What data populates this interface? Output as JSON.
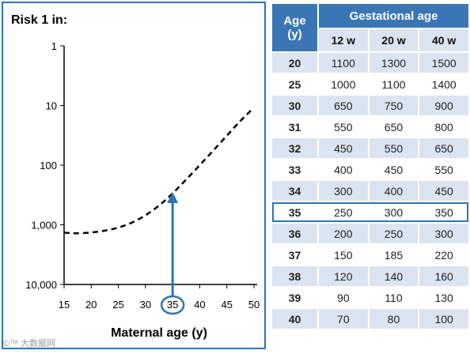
{
  "chart_data": {
    "type": "line",
    "title": "Risk 1 in:",
    "xlabel": "Maternal age (y)",
    "x_ticks": [
      15,
      20,
      25,
      30,
      35,
      40,
      45,
      50
    ],
    "x_range": [
      15,
      50
    ],
    "y_ticks": [
      1,
      10,
      100,
      1000,
      10000
    ],
    "y_tick_labels": [
      "1",
      "10",
      "100",
      "1,000",
      "10,000"
    ],
    "y_scale": "log-reversed",
    "y_range": [
      1,
      10000
    ],
    "series": [
      {
        "style": "dashed",
        "color": "#000000",
        "x": [
          15,
          17,
          20,
          22.5,
          25,
          27.5,
          30,
          32.5,
          35,
          37.5,
          40,
          42.5,
          45,
          47.5,
          49.5
        ],
        "y": [
          1350,
          1400,
          1350,
          1260,
          1120,
          930,
          700,
          480,
          300,
          175,
          100,
          57,
          32,
          18,
          12
        ]
      }
    ],
    "highlight": {
      "x": 35,
      "label": "35",
      "arrow": "up-to-curve",
      "color": "#2e74b5"
    }
  },
  "table": {
    "age_header": [
      "Age",
      "(y)"
    ],
    "group_header": "Gestational age",
    "columns": [
      "12 w",
      "20 w",
      "40 w"
    ],
    "rows": [
      {
        "age": "20",
        "values": [
          "1100",
          "1300",
          "1500"
        ]
      },
      {
        "age": "25",
        "values": [
          "1000",
          "1100",
          "1400"
        ]
      },
      {
        "age": "30",
        "values": [
          "650",
          "750",
          "900"
        ]
      },
      {
        "age": "31",
        "values": [
          "550",
          "650",
          "800"
        ]
      },
      {
        "age": "32",
        "values": [
          "450",
          "550",
          "650"
        ]
      },
      {
        "age": "33",
        "values": [
          "400",
          "450",
          "550"
        ]
      },
      {
        "age": "34",
        "values": [
          "300",
          "400",
          "450"
        ]
      },
      {
        "age": "35",
        "values": [
          "250",
          "300",
          "350"
        ],
        "highlighted": true
      },
      {
        "age": "36",
        "values": [
          "200",
          "250",
          "300"
        ]
      },
      {
        "age": "37",
        "values": [
          "150",
          "185",
          "220"
        ]
      },
      {
        "age": "38",
        "values": [
          "120",
          "140",
          "160"
        ]
      },
      {
        "age": "39",
        "values": [
          "90",
          "110",
          "130"
        ]
      },
      {
        "age": "40",
        "values": [
          "70",
          "80",
          "100"
        ]
      }
    ]
  },
  "colors": {
    "accent": "#2e74b5",
    "header_bg": "#3a76b3",
    "stripe_bg": "#dbe5f1"
  },
  "watermark": "©™ 大数据网"
}
